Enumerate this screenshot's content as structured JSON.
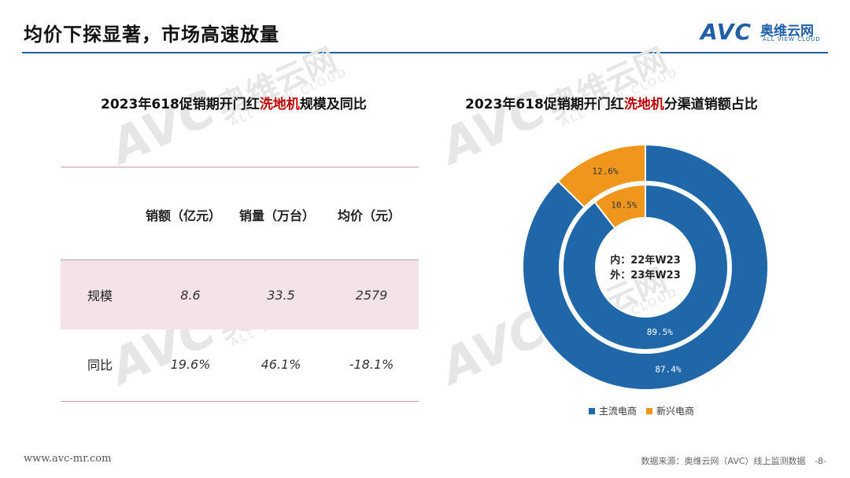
{
  "page": {
    "title": "均价下探显著，市场高速放量"
  },
  "logo": {
    "brand": "AVC",
    "name_cn": "奥维云网",
    "name_en": "ALL VIEW CLOUD"
  },
  "watermark": {
    "brand": "AVC",
    "name_cn": "奥维云网",
    "name_en": "ALL VIEW CLOUD"
  },
  "left_panel": {
    "title_pre": "2023年618促销期开门红",
    "title_highlight": "洗地机",
    "title_post": "规模及同比",
    "table": {
      "columns": [
        "",
        "销额（亿元）",
        "销量（万台）",
        "均价（元）"
      ],
      "rows": [
        {
          "label": "规模",
          "values": [
            "8.6",
            "33.5",
            "2579"
          ]
        },
        {
          "label": "同比",
          "values": [
            "19.6%",
            "46.1%",
            "-18.1%"
          ]
        }
      ]
    }
  },
  "chart_data": {
    "type": "pie",
    "subtype": "donut",
    "title_pre": "2023年618促销期开门红",
    "title_highlight": "洗地机",
    "title_post": "分渠道销额占比",
    "center_label_lines": [
      "内：22年W23",
      "外：23年W23"
    ],
    "categories": [
      "主流电商",
      "新兴电商"
    ],
    "rings": [
      {
        "ring": "inner",
        "period": "22年W23",
        "values": [
          89.5,
          10.5
        ],
        "labels": [
          "89.5%",
          "10.5%"
        ]
      },
      {
        "ring": "outer",
        "period": "23年W23",
        "values": [
          87.4,
          12.6
        ],
        "labels": [
          "87.4%",
          "12.6%"
        ]
      }
    ],
    "colors": [
      "#1f67a8",
      "#f0961c"
    ],
    "legend_position": "bottom"
  },
  "footer": {
    "url": "www.avc-mr.com",
    "source": "数据来源：奥维云网（AVC）线上监测数据",
    "page_number": "-8-"
  }
}
